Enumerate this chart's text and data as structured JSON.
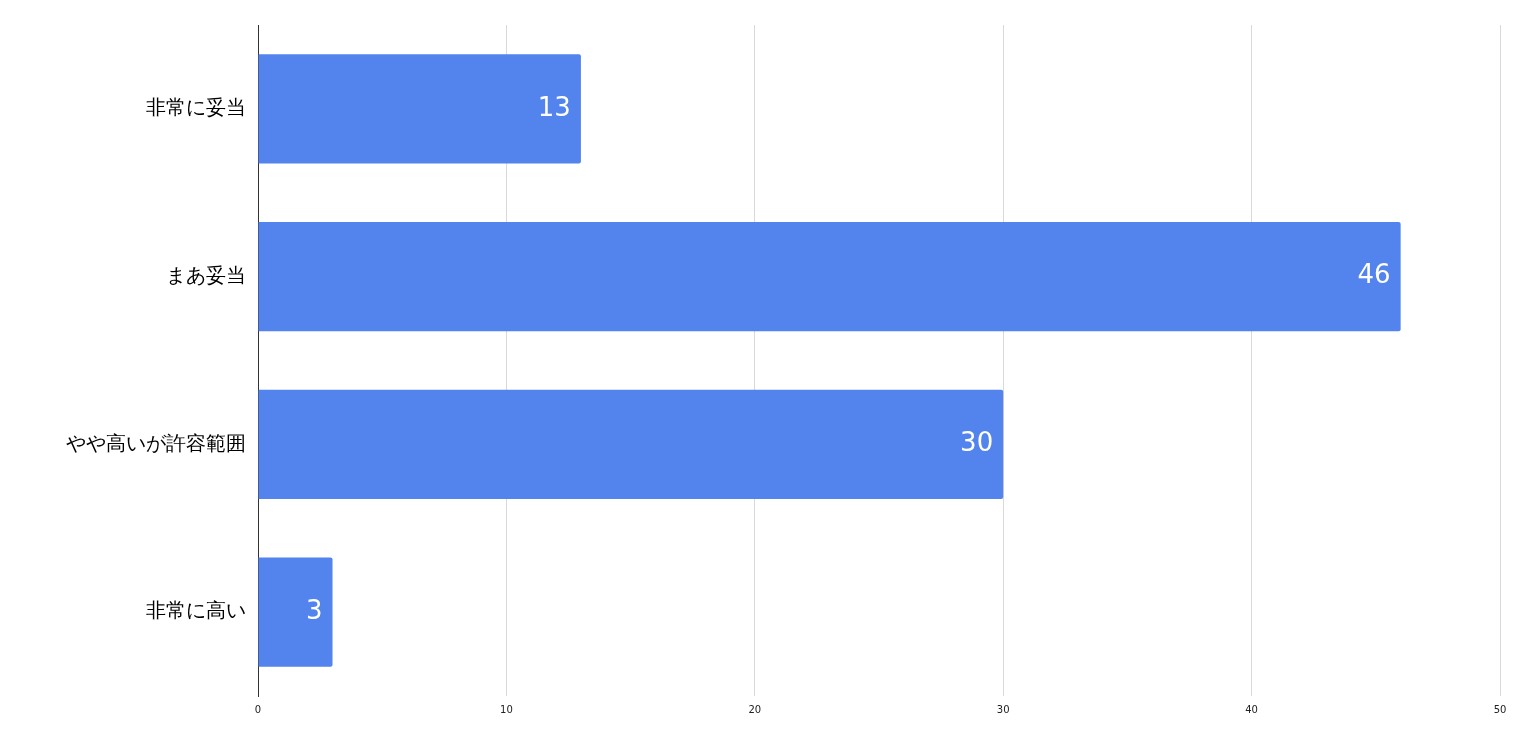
{
  "chart_data": {
    "type": "bar",
    "orientation": "horizontal",
    "categories": [
      "非常に妥当",
      "まあ妥当",
      "やや高いが許容範囲",
      "非常に高い"
    ],
    "values": [
      13,
      46,
      30,
      3
    ],
    "color": "#5383ec",
    "xlim": [
      0,
      50
    ],
    "xticks": [
      0,
      10,
      20,
      30,
      40,
      50
    ],
    "grid": "x",
    "data_labels": true
  }
}
